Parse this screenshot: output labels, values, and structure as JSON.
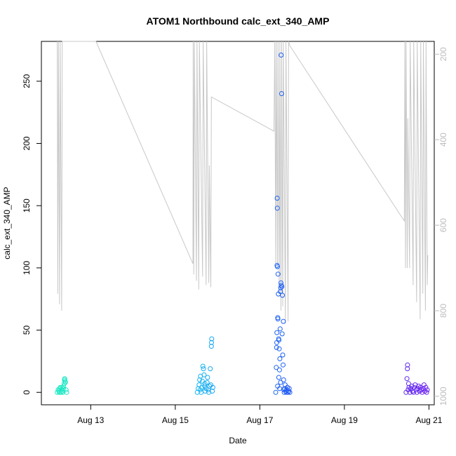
{
  "chart_data": {
    "type": "scatter",
    "title": "ATOM1 Northbound calc_ext_340_AMP",
    "xlabel": "Date",
    "ylabel": "calc_ext_340_AMP",
    "x_unit": "date",
    "xlim": [
      "2012-08-11 20:00",
      "2012-08-21 03:00"
    ],
    "ylim": [
      -10,
      282
    ],
    "x_ticks": [
      {
        "label": "Aug 13",
        "date": "2012-08-13"
      },
      {
        "label": "Aug 15",
        "date": "2012-08-15"
      },
      {
        "label": "Aug 17",
        "date": "2012-08-17"
      },
      {
        "label": "Aug 19",
        "date": "2012-08-19"
      },
      {
        "label": "Aug 21",
        "date": "2012-08-21"
      }
    ],
    "y_ticks": [
      0,
      50,
      100,
      150,
      200,
      250
    ],
    "secondary_axis": {
      "side": "right",
      "color": "#bdbdbd",
      "reversed": true,
      "ylim": [
        1020,
        170
      ],
      "ticks": [
        200,
        400,
        600,
        800,
        1000
      ]
    },
    "series": [
      {
        "kind": "points",
        "points": [
          [
            "2012-08-12 05:00",
            0
          ],
          [
            "2012-08-12 05:30",
            2
          ],
          [
            "2012-08-12 06:00",
            1
          ],
          [
            "2012-08-12 06:20",
            3
          ],
          [
            "2012-08-12 06:45",
            4
          ],
          [
            "2012-08-12 07:10",
            0
          ],
          [
            "2012-08-12 07:30",
            2
          ],
          [
            "2012-08-12 07:50",
            1
          ],
          [
            "2012-08-12 08:10",
            0
          ],
          [
            "2012-08-12 08:30",
            3
          ],
          [
            "2012-08-12 08:40",
            5
          ],
          [
            "2012-08-12 08:55",
            7
          ],
          [
            "2012-08-12 09:05",
            10
          ],
          [
            "2012-08-12 09:15",
            11
          ],
          [
            "2012-08-12 09:25",
            9
          ],
          [
            "2012-08-12 09:40",
            8
          ],
          [
            "2012-08-12 10:00",
            2
          ],
          [
            "2012-08-12 10:20",
            0
          ],
          [
            "2012-08-12 06:10",
            0
          ],
          [
            "2012-08-12 07:40",
            4
          ],
          [
            "2012-08-15 12:30",
            0
          ],
          [
            "2012-08-15 13:00",
            3
          ],
          [
            "2012-08-15 13:30",
            6
          ],
          [
            "2012-08-15 13:50",
            10
          ],
          [
            "2012-08-15 14:10",
            2
          ],
          [
            "2012-08-15 14:40",
            0
          ],
          [
            "2012-08-15 15:00",
            4
          ],
          [
            "2012-08-15 15:20",
            9
          ],
          [
            "2012-08-15 15:40",
            21
          ],
          [
            "2012-08-15 16:00",
            19
          ],
          [
            "2012-08-15 16:20",
            14
          ],
          [
            "2012-08-15 16:40",
            5
          ],
          [
            "2012-08-15 17:00",
            1
          ],
          [
            "2012-08-15 17:30",
            3
          ],
          [
            "2012-08-15 18:00",
            8
          ],
          [
            "2012-08-15 18:20",
            12
          ],
          [
            "2012-08-15 18:40",
            2
          ],
          [
            "2012-08-15 19:00",
            0
          ],
          [
            "2012-08-15 19:30",
            5
          ],
          [
            "2012-08-15 19:50",
            19
          ],
          [
            "2012-08-15 20:10",
            6
          ],
          [
            "2012-08-15 20:30",
            37
          ],
          [
            "2012-08-15 20:35",
            40
          ],
          [
            "2012-08-15 20:40",
            43
          ],
          [
            "2012-08-15 21:00",
            1
          ],
          [
            "2012-08-15 21:20",
            4
          ],
          [
            "2012-08-15 14:20",
            13
          ],
          [
            "2012-08-15 16:50",
            7
          ],
          [
            "2012-08-17 09:00",
            0
          ],
          [
            "2012-08-17 09:20",
            20
          ],
          [
            "2012-08-17 09:30",
            36
          ],
          [
            "2012-08-17 09:35",
            40
          ],
          [
            "2012-08-17 09:40",
            48
          ],
          [
            "2012-08-17 09:45",
            102
          ],
          [
            "2012-08-17 09:50",
            156
          ],
          [
            "2012-08-17 09:55",
            148
          ],
          [
            "2012-08-17 10:00",
            101
          ],
          [
            "2012-08-17 10:10",
            60
          ],
          [
            "2012-08-17 10:15",
            59
          ],
          [
            "2012-08-17 10:20",
            95
          ],
          [
            "2012-08-17 10:30",
            79
          ],
          [
            "2012-08-17 10:40",
            43
          ],
          [
            "2012-08-17 10:50",
            42
          ],
          [
            "2012-08-17 11:00",
            35
          ],
          [
            "2012-08-17 11:10",
            18
          ],
          [
            "2012-08-17 11:20",
            27
          ],
          [
            "2012-08-17 11:30",
            51
          ],
          [
            "2012-08-17 11:40",
            81
          ],
          [
            "2012-08-17 11:50",
            84
          ],
          [
            "2012-08-17 12:00",
            88
          ],
          [
            "2012-08-17 12:05",
            271
          ],
          [
            "2012-08-17 12:10",
            86
          ],
          [
            "2012-08-17 12:20",
            240
          ],
          [
            "2012-08-17 12:30",
            85
          ],
          [
            "2012-08-17 12:40",
            47
          ],
          [
            "2012-08-17 12:50",
            78
          ],
          [
            "2012-08-17 13:00",
            30
          ],
          [
            "2012-08-17 13:10",
            22
          ],
          [
            "2012-08-17 13:20",
            57
          ],
          [
            "2012-08-17 13:30",
            10
          ],
          [
            "2012-08-17 13:40",
            2
          ],
          [
            "2012-08-17 13:50",
            0
          ],
          [
            "2012-08-17 14:00",
            3
          ],
          [
            "2012-08-17 14:20",
            6
          ],
          [
            "2012-08-17 14:40",
            1
          ],
          [
            "2012-08-17 15:00",
            0
          ],
          [
            "2012-08-17 15:20",
            2
          ],
          [
            "2012-08-17 15:40",
            4
          ],
          [
            "2012-08-17 16:00",
            0
          ],
          [
            "2012-08-17 16:20",
            1
          ],
          [
            "2012-08-17 16:40",
            3
          ],
          [
            "2012-08-17 17:00",
            0
          ],
          [
            "2012-08-17 10:05",
            5
          ],
          [
            "2012-08-17 10:45",
            12
          ],
          [
            "2012-08-17 11:15",
            3
          ],
          [
            "2012-08-17 11:45",
            8
          ],
          [
            "2012-08-20 11:00",
            0
          ],
          [
            "2012-08-20 11:30",
            11
          ],
          [
            "2012-08-20 11:45",
            19
          ],
          [
            "2012-08-20 11:50",
            22
          ],
          [
            "2012-08-20 12:10",
            2
          ],
          [
            "2012-08-20 12:40",
            4
          ],
          [
            "2012-08-20 13:10",
            0
          ],
          [
            "2012-08-20 13:40",
            3
          ],
          [
            "2012-08-20 14:10",
            5
          ],
          [
            "2012-08-20 14:40",
            1
          ],
          [
            "2012-08-20 15:10",
            0
          ],
          [
            "2012-08-20 15:40",
            4
          ],
          [
            "2012-08-20 16:10",
            6
          ],
          [
            "2012-08-20 16:40",
            2
          ],
          [
            "2012-08-20 17:10",
            0
          ],
          [
            "2012-08-20 17:40",
            3
          ],
          [
            "2012-08-20 18:10",
            5
          ],
          [
            "2012-08-20 18:40",
            1
          ],
          [
            "2012-08-20 19:10",
            4
          ],
          [
            "2012-08-20 19:40",
            2
          ],
          [
            "2012-08-20 20:10",
            0
          ],
          [
            "2012-08-20 20:40",
            3
          ],
          [
            "2012-08-20 21:10",
            6
          ],
          [
            "2012-08-20 21:40",
            1
          ],
          [
            "2012-08-20 22:10",
            4
          ],
          [
            "2012-08-20 22:40",
            0
          ],
          [
            "2012-08-20 23:00",
            2
          ],
          [
            "2012-08-20 12:25",
            7
          ]
        ],
        "colors_by_time": [
          "#19e8c0",
          "#16c8f0",
          "#1f48f5",
          "#6b21f0"
        ]
      },
      {
        "kind": "line",
        "axis": "secondary",
        "color": "#c8c8c8",
        "points": [
          [
            "2012-08-12 05:00",
            170
          ],
          [
            "2012-08-12 05:20",
            760
          ],
          [
            "2012-08-12 05:40",
            170
          ],
          [
            "2012-08-12 06:20",
            785
          ],
          [
            "2012-08-12 06:40",
            170
          ],
          [
            "2012-08-12 07:30",
            800
          ],
          [
            "2012-08-12 07:50",
            170
          ],
          [
            "2012-08-13 03:00",
            170
          ],
          [
            "2012-08-15 10:00",
            690
          ],
          [
            "2012-08-15 10:10",
            170
          ],
          [
            "2012-08-15 10:30",
            715
          ],
          [
            "2012-08-15 10:50",
            170
          ],
          [
            "2012-08-15 12:00",
            730
          ],
          [
            "2012-08-15 12:20",
            170
          ],
          [
            "2012-08-15 13:20",
            750
          ],
          [
            "2012-08-15 13:40",
            170
          ],
          [
            "2012-08-15 15:30",
            720
          ],
          [
            "2012-08-15 15:50",
            170
          ],
          [
            "2012-08-15 17:30",
            740
          ],
          [
            "2012-08-15 17:50",
            170
          ],
          [
            "2012-08-15 19:00",
            735
          ],
          [
            "2012-08-15 19:20",
            460
          ],
          [
            "2012-08-15 20:10",
            745
          ],
          [
            "2012-08-15 20:30",
            300
          ],
          [
            "2012-08-17 08:00",
            380
          ],
          [
            "2012-08-17 08:30",
            170
          ],
          [
            "2012-08-17 09:00",
            690
          ],
          [
            "2012-08-17 09:20",
            170
          ],
          [
            "2012-08-17 10:00",
            700
          ],
          [
            "2012-08-17 10:20",
            170
          ],
          [
            "2012-08-17 11:00",
            760
          ],
          [
            "2012-08-17 11:20",
            170
          ],
          [
            "2012-08-17 12:00",
            800
          ],
          [
            "2012-08-17 12:20",
            170
          ],
          [
            "2012-08-17 13:00",
            790
          ],
          [
            "2012-08-17 13:20",
            170
          ],
          [
            "2012-08-17 14:30",
            830
          ],
          [
            "2012-08-17 14:50",
            170
          ],
          [
            "2012-08-17 16:00",
            825
          ],
          [
            "2012-08-17 16:20",
            170
          ],
          [
            "2012-08-17 17:00",
            180
          ],
          [
            "2012-08-20 10:00",
            590
          ],
          [
            "2012-08-20 10:20",
            170
          ],
          [
            "2012-08-20 10:40",
            700
          ],
          [
            "2012-08-20 11:00",
            170
          ],
          [
            "2012-08-20 11:40",
            700
          ],
          [
            "2012-08-20 12:00",
            350
          ],
          [
            "2012-08-20 13:00",
            700
          ],
          [
            "2012-08-20 13:20",
            170
          ],
          [
            "2012-08-20 15:00",
            740
          ],
          [
            "2012-08-20 15:20",
            170
          ],
          [
            "2012-08-20 17:00",
            780
          ],
          [
            "2012-08-20 17:20",
            170
          ],
          [
            "2012-08-20 19:00",
            820
          ],
          [
            "2012-08-20 19:20",
            170
          ],
          [
            "2012-08-20 20:30",
            760
          ],
          [
            "2012-08-20 20:50",
            170
          ],
          [
            "2012-08-20 22:00",
            800
          ],
          [
            "2012-08-20 22:20",
            170
          ],
          [
            "2012-08-20 23:00",
            740
          ],
          [
            "2012-08-20 23:20",
            670
          ]
        ]
      }
    ]
  }
}
